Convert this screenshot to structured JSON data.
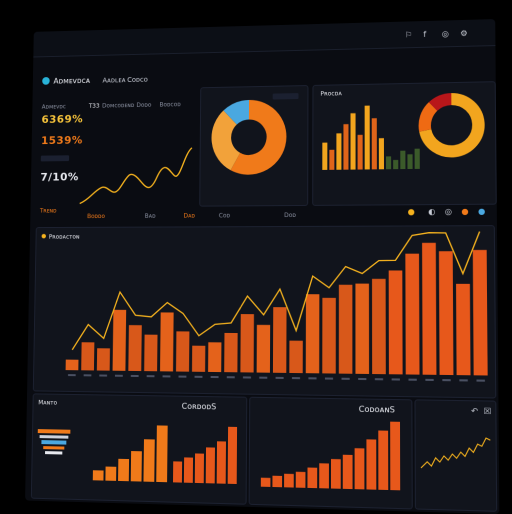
{
  "header": {
    "app_title": "Aᴅᴍᴇᴠᴅᴄᴀ",
    "nav": [
      "Aᴀᴅʟᴇᴀ",
      "Cᴏᴅᴄᴏ"
    ],
    "icons": [
      "flag-icon",
      "f-icon",
      "globe-icon",
      "gear-icon"
    ]
  },
  "left_stats": {
    "heading": "Aᴅᴍᴇᴠᴅᴄ",
    "values": [
      "6369%",
      "1539%",
      "7/10%"
    ],
    "subtitle": "Tʀᴇɴᴅ"
  },
  "mini_tabs": [
    "T33",
    "Dᴏᴍᴄᴏᴅᴇɴᴅ",
    "Dᴏᴅᴏ",
    "Bᴏᴅᴄᴏᴅ"
  ],
  "mid_toolbar": [
    "Bᴏᴅᴅᴏ",
    "Bᴀᴅ",
    "Dᴀᴅ",
    "Cᴏᴅ",
    "Dᴏᴅ"
  ],
  "top_right_panel": {
    "title": "Pʀᴏᴄᴅᴀ"
  },
  "main_chart_title": "Pʀᴏᴅᴀᴄᴛᴏɴ",
  "bottom_left": {
    "title": "Mᴀɴᴛᴏ"
  },
  "bottom_mid": {
    "title": "CᴏʀᴅᴏᴅS"
  },
  "bottom_right": {
    "title": "CᴏᴅᴏᴀɴS"
  },
  "colors": {
    "accent": "#f07a1a",
    "bg": "#0a0c12",
    "line": "#f5b21e",
    "blue": "#4aa8e0"
  },
  "chart_data": [
    {
      "type": "bar",
      "title": "Pʀᴏᴅᴀᴄᴛᴏɴ",
      "categories": [
        "1",
        "2",
        "3",
        "4",
        "5",
        "6",
        "7",
        "8",
        "9",
        "10",
        "11",
        "12",
        "13",
        "14",
        "15",
        "16",
        "17",
        "18",
        "19",
        "20",
        "21",
        "22",
        "23",
        "24",
        "25",
        "26"
      ],
      "values": [
        18,
        48,
        38,
        104,
        78,
        62,
        100,
        68,
        44,
        50,
        66,
        98,
        80,
        110,
        54,
        132,
        126,
        148,
        150,
        158,
        172,
        200,
        218,
        204,
        150,
        206
      ],
      "ylim": [
        0,
        220
      ]
    },
    {
      "type": "pie",
      "values": [
        58,
        30,
        12
      ],
      "colors": [
        "#f07a1a",
        "#f2a23a",
        "#4aa8e0"
      ]
    },
    {
      "type": "pie",
      "values": [
        72,
        16,
        12
      ],
      "colors": [
        "#f2a51e",
        "#ef6a13",
        "#b8161a"
      ]
    }
  ]
}
